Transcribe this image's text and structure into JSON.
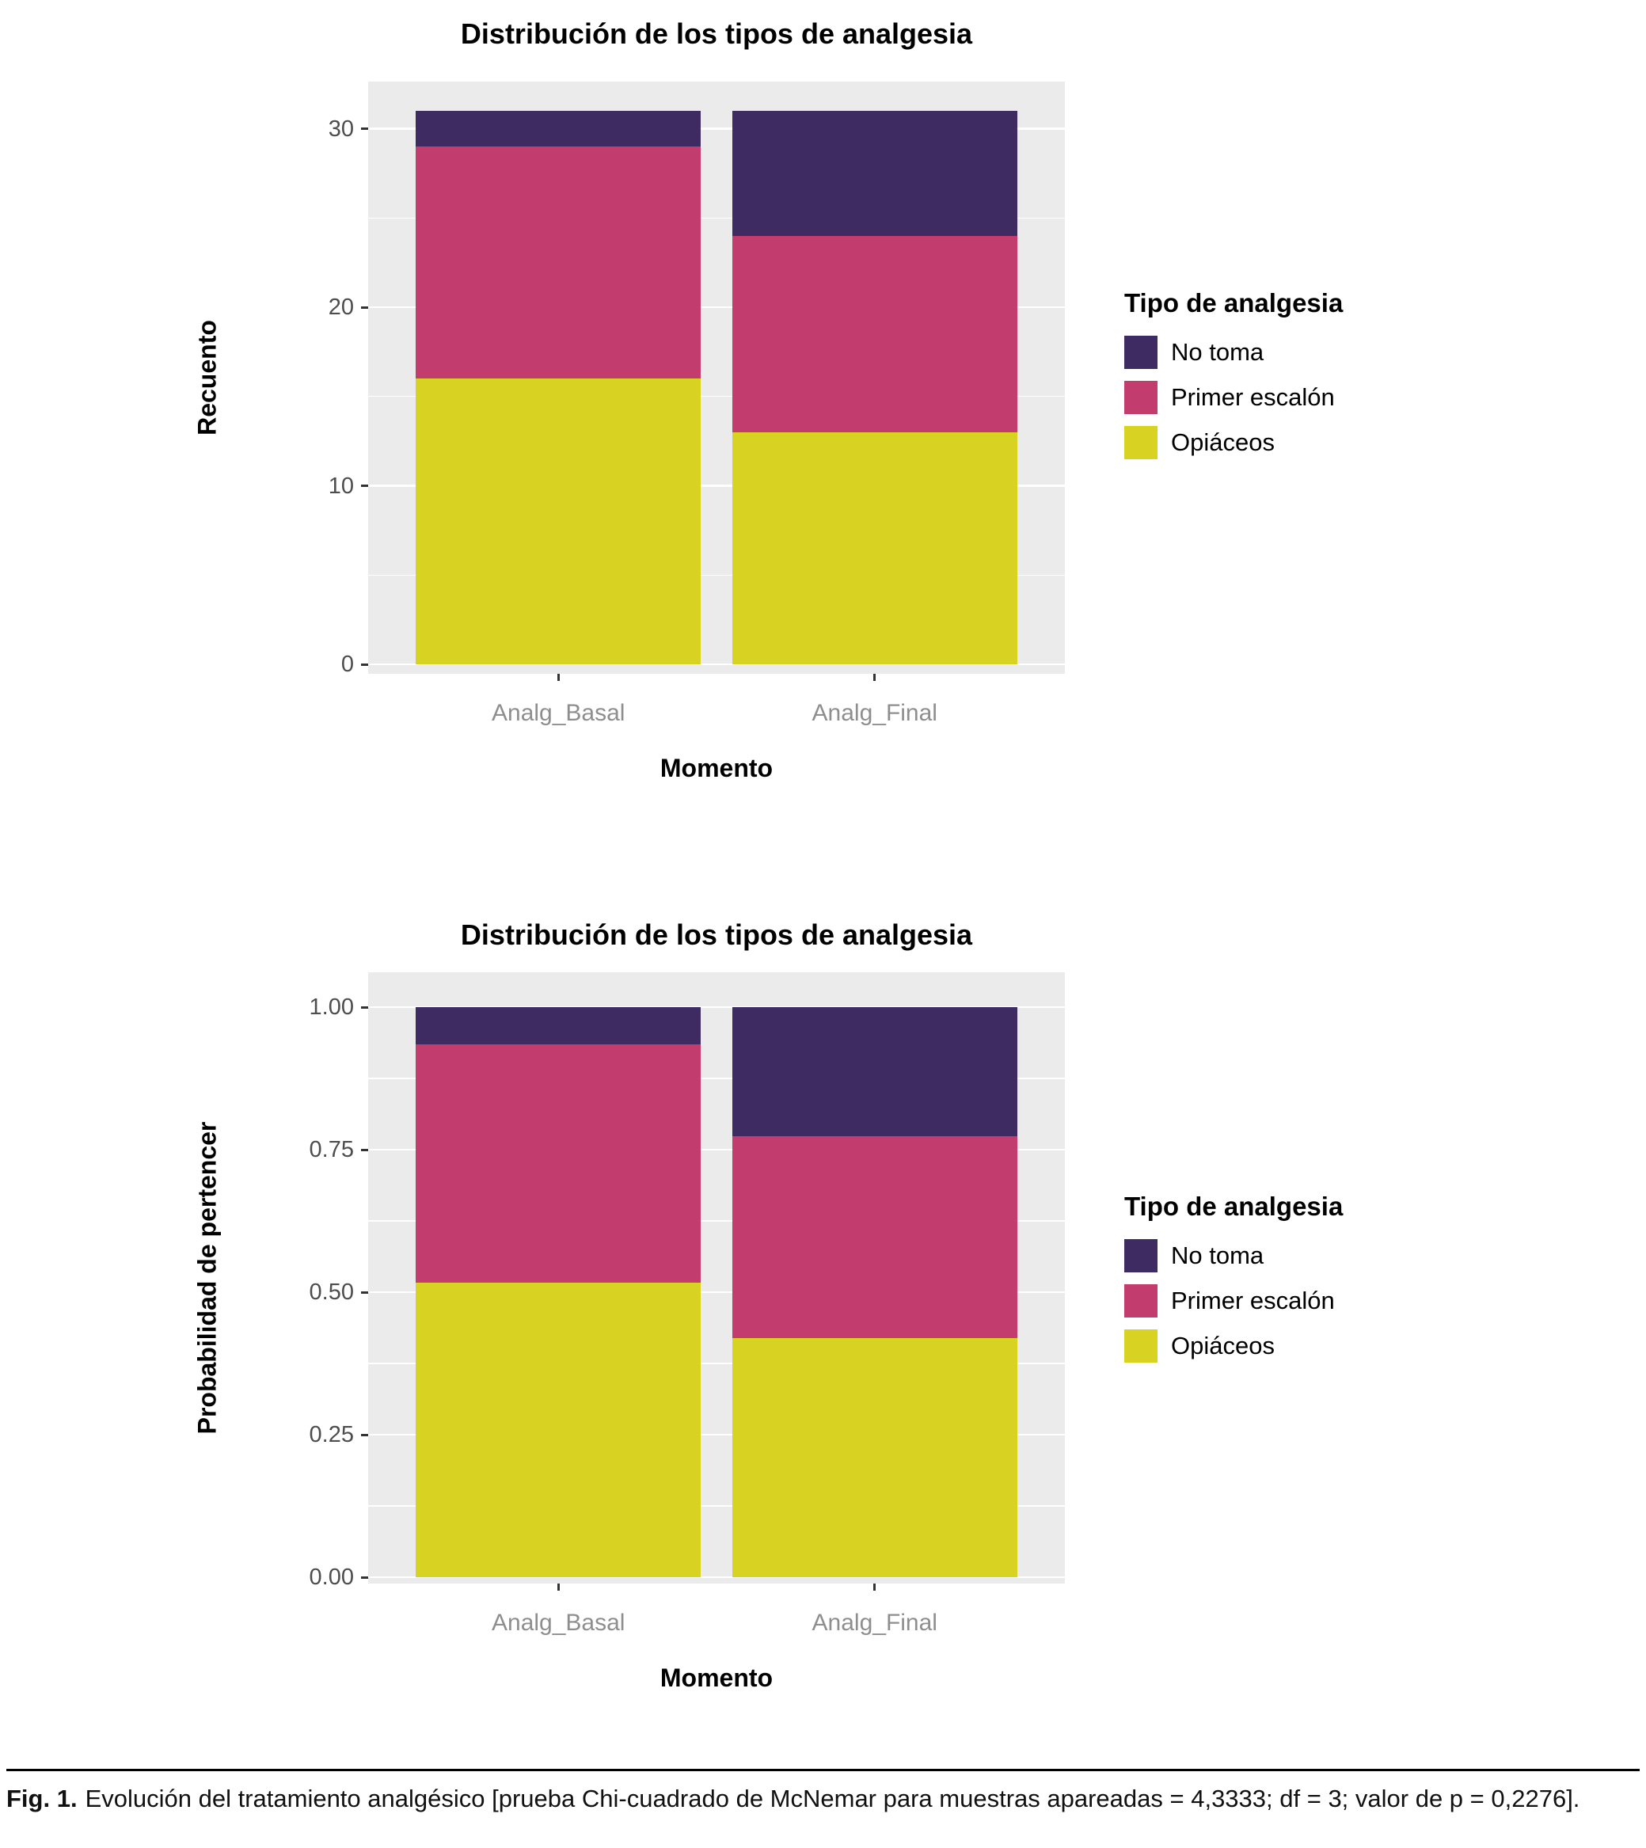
{
  "chart_data": [
    {
      "type": "bar",
      "stacked": true,
      "title": "Distribución de los tipos de analgesia",
      "xlabel": "Momento",
      "ylabel": "Recuento",
      "categories": [
        "Analg_Basal",
        "Analg_Final"
      ],
      "series": [
        {
          "name": "Opiáceos",
          "values": [
            16,
            13
          ]
        },
        {
          "name": "Primer escalón",
          "values": [
            13,
            11
          ]
        },
        {
          "name": "No toma",
          "values": [
            2,
            7
          ]
        }
      ],
      "totals": [
        31,
        31
      ],
      "ylim": [
        0,
        31
      ],
      "ytick_values": [
        0,
        10,
        20,
        30
      ],
      "yticks": [
        "0",
        "10",
        "20",
        "30"
      ],
      "grid": true,
      "legend": {
        "title": "Tipo de analgesia",
        "position": "right",
        "items": [
          "No toma",
          "Primer escalón",
          "Opiáceos"
        ]
      }
    },
    {
      "type": "bar",
      "stacked": true,
      "title": "Distribución de los tipos de analgesia",
      "xlabel": "Momento",
      "ylabel": "Probabilidad de pertencer",
      "categories": [
        "Analg_Basal",
        "Analg_Final"
      ],
      "series": [
        {
          "name": "Opiáceos",
          "values": [
            0.516,
            0.419
          ]
        },
        {
          "name": "Primer escalón",
          "values": [
            0.419,
            0.355
          ]
        },
        {
          "name": "No toma",
          "values": [
            0.065,
            0.226
          ]
        }
      ],
      "totals": [
        1.0,
        1.0
      ],
      "ylim": [
        0,
        1
      ],
      "ytick_values": [
        0,
        0.25,
        0.5,
        0.75,
        1
      ],
      "yticks": [
        "0.00",
        "0.25",
        "0.50",
        "0.75",
        "1.00"
      ],
      "grid": true,
      "legend": {
        "title": "Tipo de analgesia",
        "position": "right",
        "items": [
          "No toma",
          "Primer escalón",
          "Opiáceos"
        ]
      }
    }
  ],
  "series_colors": {
    "No toma": "#3d2b62",
    "Primer escalón": "#c23d6e",
    "Opiáceos": "#d8d322"
  },
  "panel_colors": {
    "background": "#ebebeb",
    "grid": "#ffffff"
  },
  "caption": {
    "label": "Fig. 1.",
    "text": "Evolución del tratamiento analgésico [prueba Chi-cuadrado de McNemar para muestras apareadas = 4,3333; df = 3; valor de p = 0,2276]."
  }
}
